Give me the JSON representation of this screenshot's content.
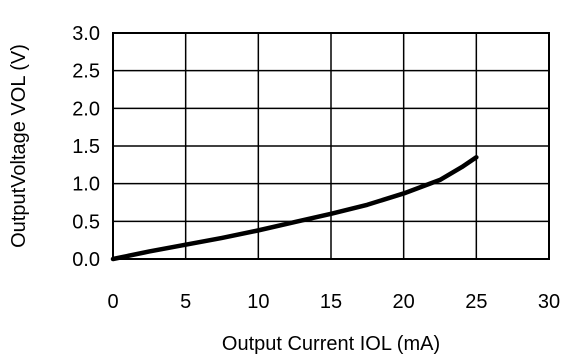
{
  "chart_data": {
    "type": "line",
    "title": "",
    "xlabel": "Output Current IOL (mA)",
    "ylabel": "OutputVoltage VOL (V)",
    "xlim": [
      0,
      30
    ],
    "ylim": [
      0,
      3.0
    ],
    "x_ticks": [
      "0",
      "5",
      "10",
      "15",
      "20",
      "25",
      "30"
    ],
    "y_ticks": [
      "0.0",
      "0.5",
      "1.0",
      "1.5",
      "2.0",
      "2.5",
      "3.0"
    ],
    "grid": true,
    "legend": "none",
    "line_color": "#000000",
    "series": [
      {
        "x": [
          0,
          2.5,
          5,
          7.5,
          10,
          12.5,
          15,
          17.5,
          20,
          22.5,
          24,
          25
        ],
        "y": [
          0.0,
          0.1,
          0.19,
          0.28,
          0.38,
          0.49,
          0.6,
          0.72,
          0.87,
          1.05,
          1.22,
          1.35
        ]
      }
    ]
  }
}
